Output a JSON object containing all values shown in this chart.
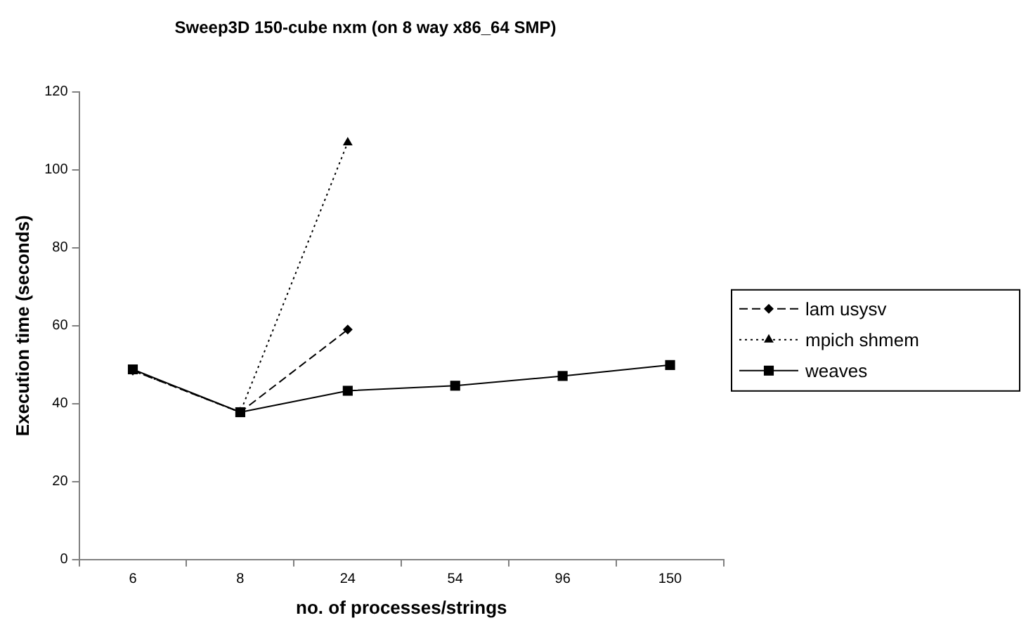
{
  "chart_data": {
    "type": "line",
    "title": "Sweep3D 150-cube nxm (on 8 way x86_64 SMP)",
    "xlabel": "no. of processes/strings",
    "ylabel": "Execution time (seconds)",
    "categories": [
      "6",
      "8",
      "24",
      "54",
      "96",
      "150"
    ],
    "series": [
      {
        "name": "lam usysv",
        "color": "#000000",
        "marker": "diamond",
        "line_style": "dashed",
        "values": [
          48.5,
          37.8,
          59,
          null,
          null,
          null
        ]
      },
      {
        "name": "mpich shmem",
        "color": "#000000",
        "marker": "triangle",
        "line_style": "dotted",
        "values": [
          48.5,
          37.8,
          107,
          null,
          null,
          null
        ]
      },
      {
        "name": "weaves",
        "color": "#000000",
        "marker": "square",
        "line_style": "solid",
        "values": [
          48.8,
          37.8,
          43.3,
          44.6,
          47.1,
          49.9
        ]
      }
    ],
    "ylim": [
      0,
      120
    ],
    "yticks": [
      0,
      20,
      40,
      60,
      80,
      100,
      120
    ],
    "grid": false,
    "legend": "right"
  }
}
